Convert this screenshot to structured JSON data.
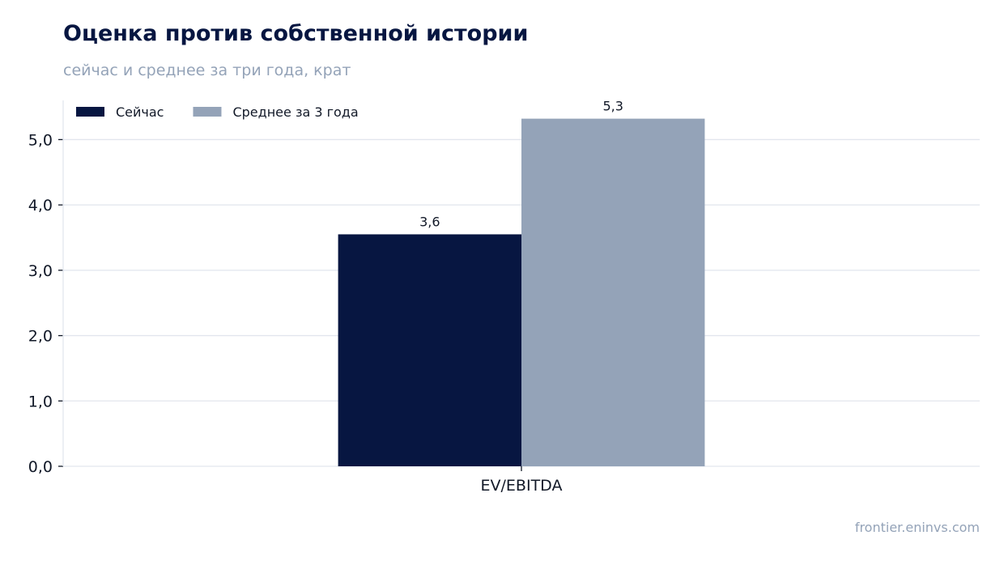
{
  "header": {
    "title": "Оценка против собственной истории",
    "subtitle": "сейчас и среднее за три года, крат"
  },
  "footer": {
    "source": "frontier.eninvs.com"
  },
  "colors": {
    "current": "#071641",
    "average": "#94a3b8",
    "grid": "#e2e6ee",
    "axis": "#111827"
  },
  "chart_data": {
    "type": "bar",
    "categories": [
      "EV/EBITDA"
    ],
    "series": [
      {
        "name": "Сейчас",
        "values": [
          3.55
        ],
        "labels": [
          "3,6"
        ]
      },
      {
        "name": "Среднее за 3 года",
        "values": [
          5.32
        ],
        "labels": [
          "5,3"
        ]
      }
    ],
    "ylim": [
      0,
      5.6
    ],
    "yticks": [
      0,
      1,
      2,
      3,
      4,
      5
    ],
    "ytick_labels": [
      "0,0",
      "1,0",
      "2,0",
      "3,0",
      "4,0",
      "5,0"
    ],
    "xlabel": "",
    "ylabel": "",
    "grid": true,
    "legend": "top-left"
  }
}
